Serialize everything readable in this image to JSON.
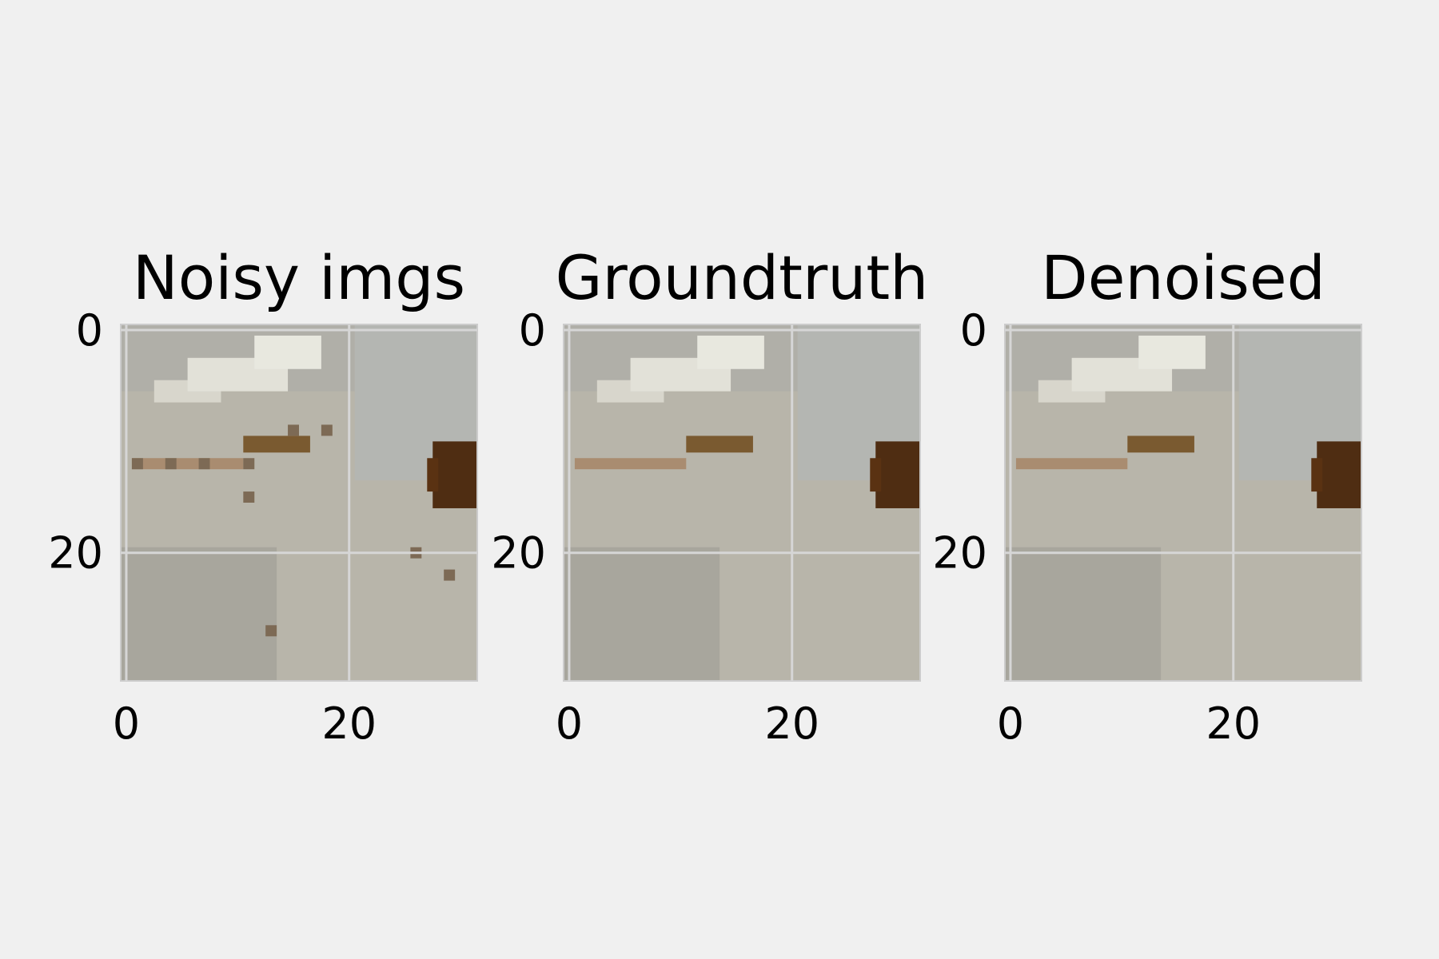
{
  "chart_data": [
    {
      "type": "image",
      "title": "Noisy imgs",
      "xlim": [
        -0.5,
        31.5
      ],
      "ylim": [
        31.5,
        -0.5
      ],
      "xticks": [
        0,
        20
      ],
      "yticks": [
        0,
        20
      ],
      "grid": true
    },
    {
      "type": "image",
      "title": "Groundtruth",
      "xlim": [
        -0.5,
        31.5
      ],
      "ylim": [
        31.5,
        -0.5
      ],
      "xticks": [
        0,
        20
      ],
      "yticks": [
        0,
        20
      ],
      "grid": true
    },
    {
      "type": "image",
      "title": "Denoised",
      "xlim": [
        -0.5,
        31.5
      ],
      "ylim": [
        31.5,
        -0.5
      ],
      "xticks": [
        0,
        20
      ],
      "yticks": [
        0,
        20
      ],
      "grid": true
    }
  ]
}
